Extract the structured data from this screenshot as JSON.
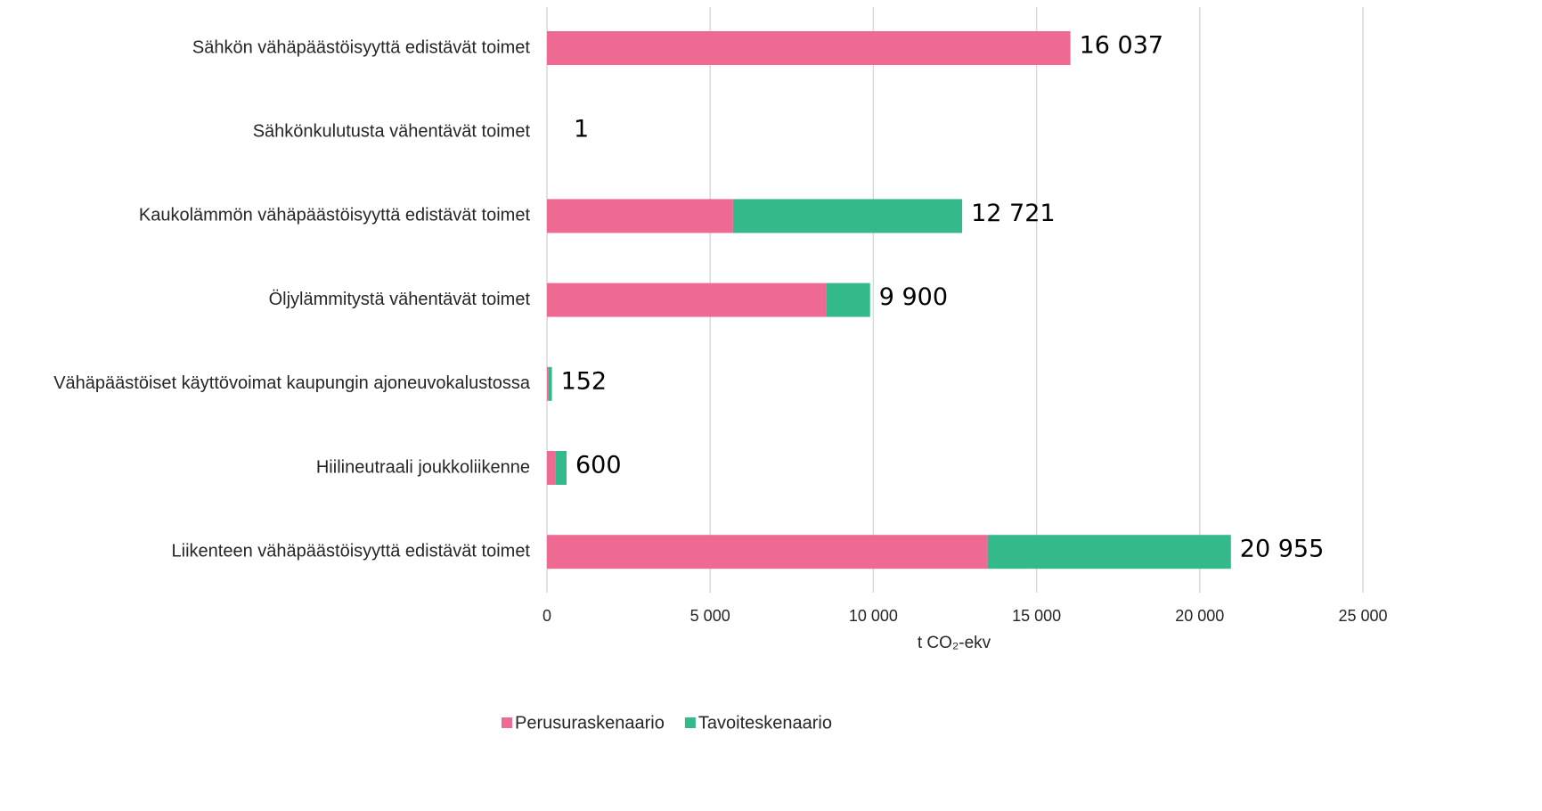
{
  "chart_data": {
    "type": "stacked_barh",
    "categories": [
      "Sähkön vähäpäästöisyyttä edistävät toimet",
      "Sähkönkulutusta vähentävät toimet",
      "Kaukolämmön vähäpäästöisyyttä edistävät toimet",
      "Öljylämmitystä vähentävät toimet",
      "Vähäpäästöiset käyttövoimat kaupungin ajoneuvokalustossa",
      "Hiilineutraali joukkoliikenne",
      "Liikenteen vähäpäästöisyyttä edistävät toimet"
    ],
    "series": [
      {
        "name": "Perusuraskenaario",
        "color": "#ee6a92",
        "values": [
          16037,
          1,
          5700,
          8550,
          50,
          270,
          13500
        ]
      },
      {
        "name": "Tavoiteskenaario",
        "color": "#33b98a",
        "values": [
          0,
          0,
          7021,
          1350,
          102,
          330,
          7455
        ]
      }
    ],
    "totals": [
      16037,
      1,
      12721,
      9900,
      152,
      600,
      20955
    ],
    "total_labels": [
      "16 037",
      "1",
      "12 721",
      "9 900",
      "152",
      "600",
      "20 955"
    ],
    "xlabel": "t CO₂-ekv",
    "xlim": [
      0,
      25000
    ],
    "xticks": [
      0,
      {
        "value": 5000,
        "label": "5 000"
      },
      {
        "value": 10000,
        "label": "10 000"
      },
      {
        "value": 15000,
        "label": "15 000"
      },
      {
        "value": 20000,
        "label": "20 000"
      },
      {
        "value": 25000,
        "label": "25 000"
      }
    ],
    "grid": true,
    "legend": "bottom"
  }
}
